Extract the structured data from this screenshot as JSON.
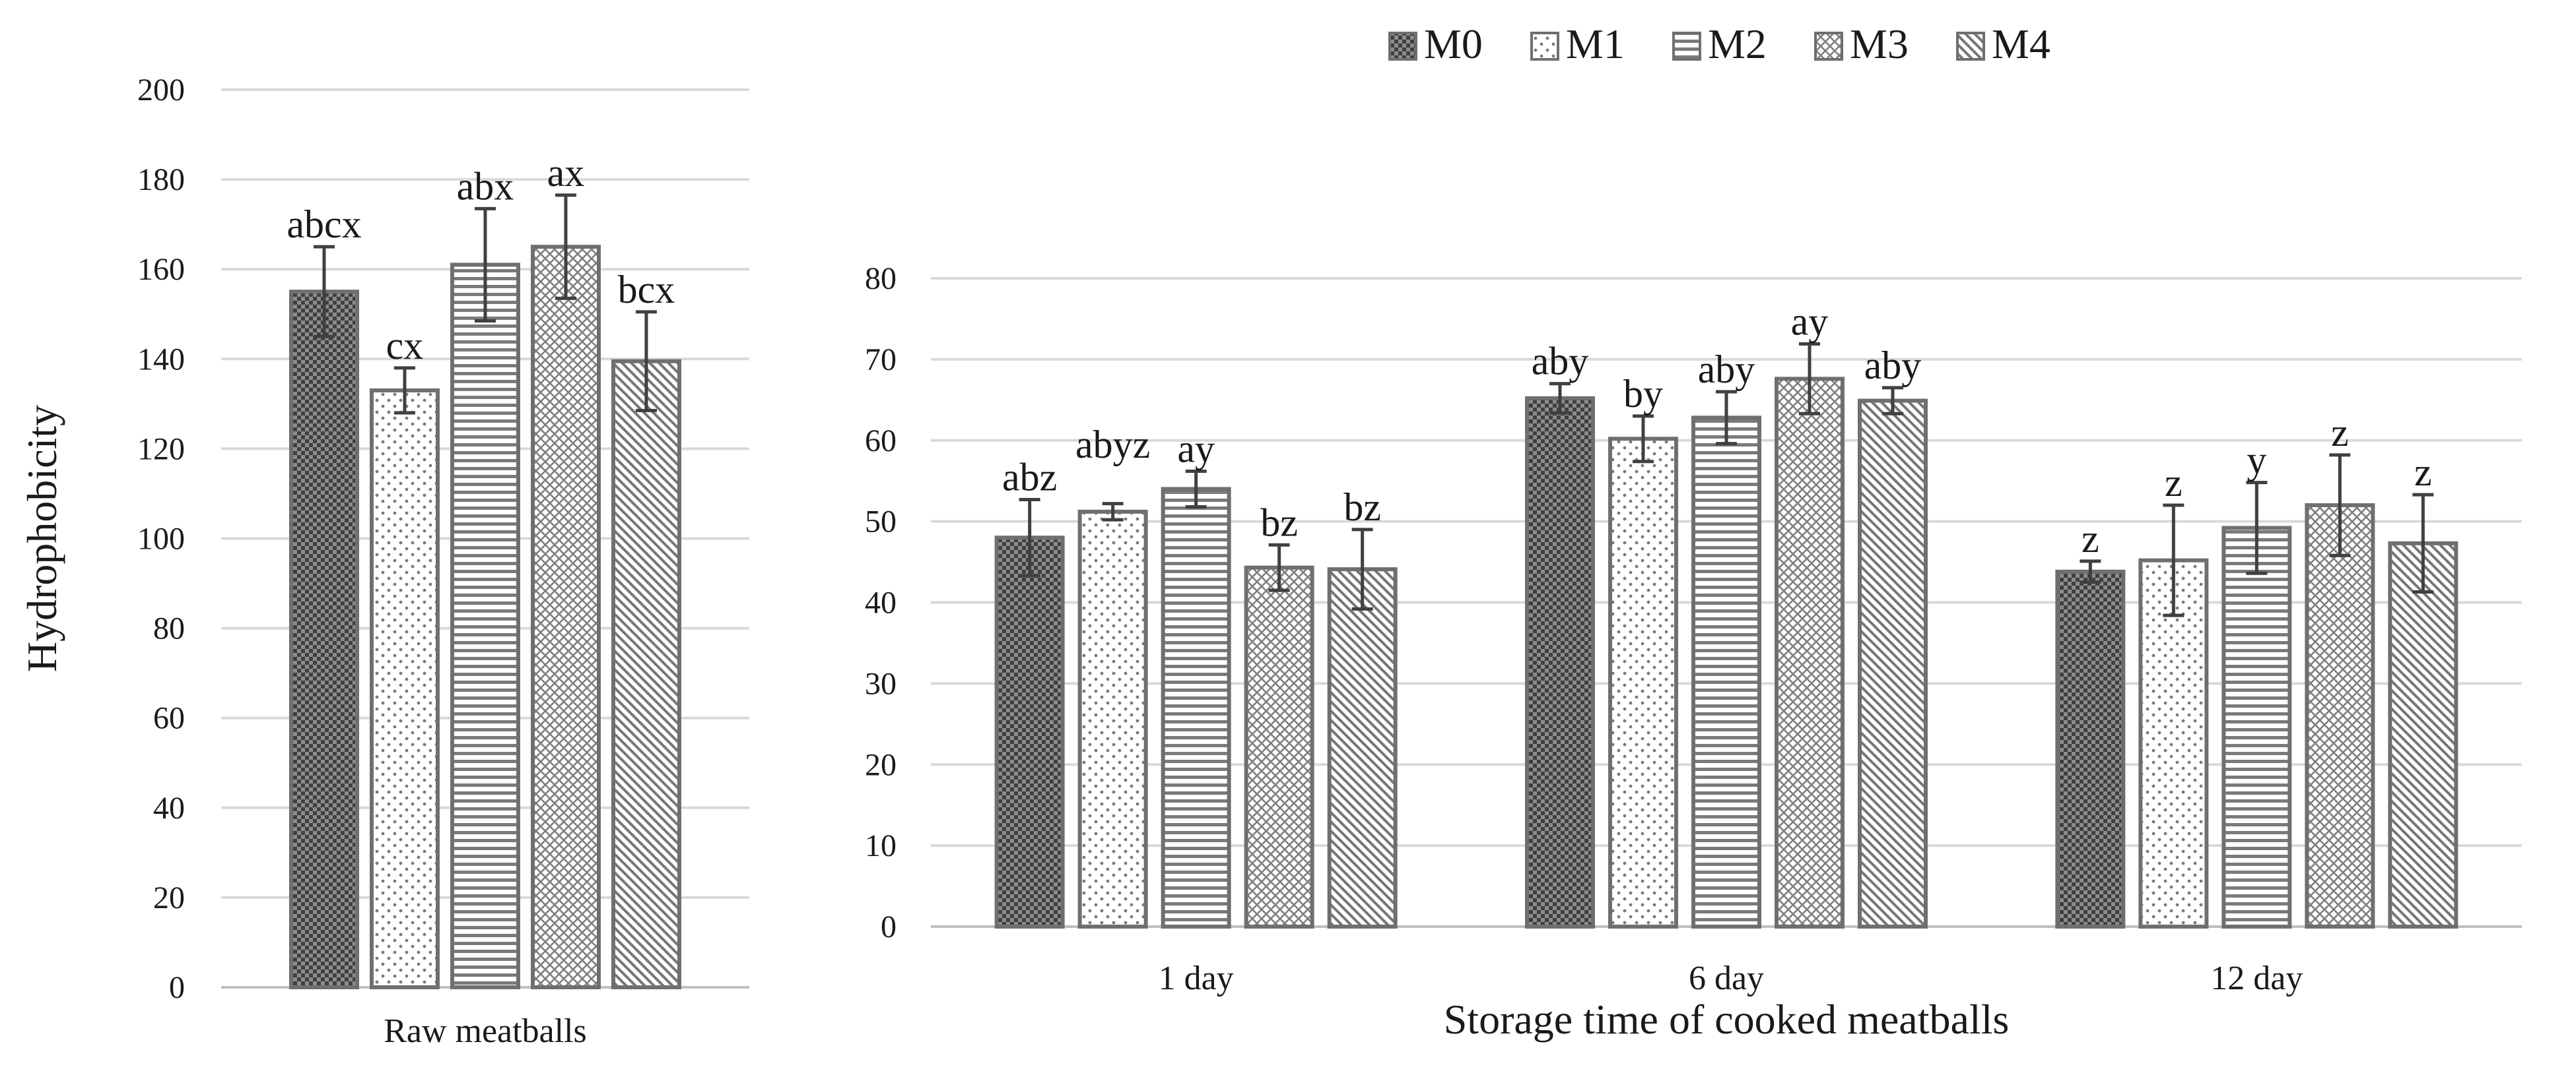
{
  "legend": [
    {
      "name": "M0",
      "pattern": "pat-checker"
    },
    {
      "name": "M1",
      "pattern": "pat-dots"
    },
    {
      "name": "M2",
      "pattern": "pat-hlines"
    },
    {
      "name": "M3",
      "pattern": "pat-diamond"
    },
    {
      "name": "M4",
      "pattern": "pat-diag"
    }
  ],
  "colors": {
    "bar_fill_dark": "#7a7a7a",
    "bar_stroke": "#6f6f6f",
    "grid": "#d9d9d9",
    "text": "#1a1a1a",
    "error_bar": "#404040"
  },
  "chart_data": [
    {
      "type": "bar",
      "xlabel": "Raw meatballs",
      "ylabel": "Hydrophobicity",
      "ylim": [
        0,
        200
      ],
      "yticks": [
        0,
        20,
        40,
        60,
        80,
        100,
        120,
        140,
        160,
        180,
        200
      ],
      "grid": true,
      "categories": [
        "Raw meatballs"
      ],
      "series": [
        {
          "name": "M0",
          "values": [
            155
          ],
          "errors": [
            10
          ],
          "labels": [
            "abcx"
          ]
        },
        {
          "name": "M1",
          "values": [
            133
          ],
          "errors": [
            5
          ],
          "labels": [
            "cx"
          ]
        },
        {
          "name": "M2",
          "values": [
            161
          ],
          "errors": [
            12.5
          ],
          "labels": [
            "abx"
          ]
        },
        {
          "name": "M3",
          "values": [
            165
          ],
          "errors": [
            11.5
          ],
          "labels": [
            "ax"
          ]
        },
        {
          "name": "M4",
          "values": [
            139.5
          ],
          "errors": [
            11
          ],
          "labels": [
            "bcx"
          ]
        }
      ]
    },
    {
      "type": "bar",
      "xlabel": "Storage time of cooked meatballs",
      "ylabel": "",
      "ylim": [
        0,
        80
      ],
      "yticks": [
        0,
        10,
        20,
        30,
        40,
        50,
        60,
        70,
        80
      ],
      "grid": true,
      "categories": [
        "1 day",
        "6 day",
        "12 day"
      ],
      "series": [
        {
          "name": "M0",
          "values": [
            48,
            65.2,
            43.8
          ],
          "errors": [
            4.7,
            1.8,
            1.3
          ],
          "labels": [
            "abz",
            "aby",
            "z"
          ]
        },
        {
          "name": "M1",
          "values": [
            51.2,
            60.2,
            45.2
          ],
          "errors": [
            1,
            2.8,
            6.8
          ],
          "labels": [
            "abyz",
            "by",
            "z"
          ]
        },
        {
          "name": "M2",
          "values": [
            54,
            62.8,
            49.2
          ],
          "errors": [
            2.2,
            3.2,
            5.6
          ],
          "labels": [
            "ay",
            "aby",
            "y"
          ]
        },
        {
          "name": "M3",
          "values": [
            44.3,
            67.6,
            52
          ],
          "errors": [
            2.8,
            4.3,
            6.2
          ],
          "labels": [
            "bz",
            "ay",
            "z"
          ]
        },
        {
          "name": "M4",
          "values": [
            44.1,
            64.9,
            47.3
          ],
          "errors": [
            4.9,
            1.6,
            6
          ],
          "labels": [
            "bz",
            "aby",
            "z"
          ]
        }
      ]
    }
  ]
}
